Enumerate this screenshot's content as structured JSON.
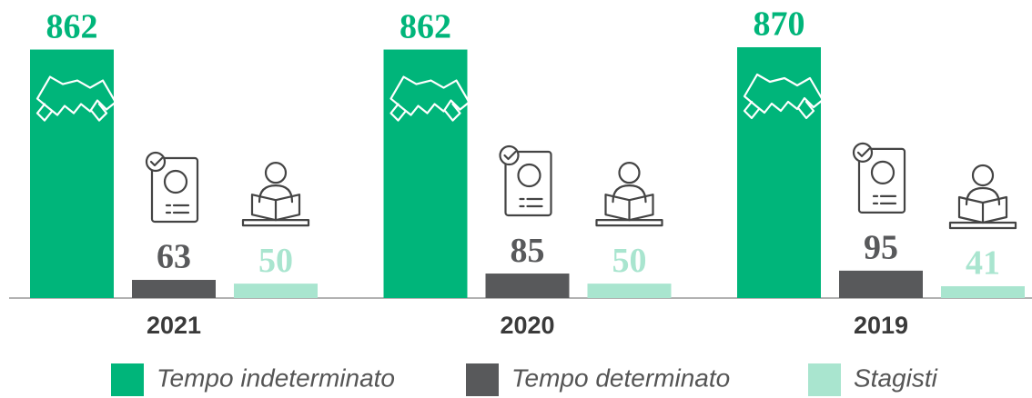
{
  "chart_data": {
    "type": "bar",
    "categories": [
      "2021",
      "2020",
      "2019"
    ],
    "series": [
      {
        "name": "Tempo indeterminato",
        "color": "#00b57a",
        "values": [
          862,
          862,
          870
        ]
      },
      {
        "name": "Tempo determinato",
        "color": "#58595b",
        "values": [
          63,
          85,
          95
        ]
      },
      {
        "name": "Stagisti",
        "color": "#a9e5cf",
        "values": [
          50,
          50,
          41
        ]
      }
    ]
  }
}
